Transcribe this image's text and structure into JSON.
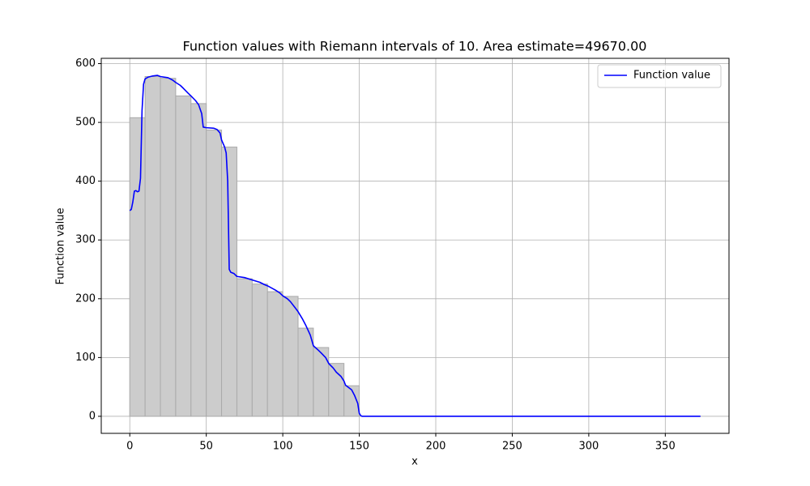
{
  "chart_data": {
    "type": "line",
    "title": "Function values with Riemann intervals of 10. Area estimate=49670.00",
    "x_label": "x",
    "y_label": "Function value",
    "xlim": [
      -18.65,
      391.65
    ],
    "ylim": [
      -29,
      609
    ],
    "xticks": [
      0,
      50,
      100,
      150,
      200,
      250,
      300,
      350
    ],
    "yticks": [
      0,
      100,
      200,
      300,
      400,
      500,
      600
    ],
    "grid": true,
    "legend": "upper right",
    "bars": {
      "color": "#cccccc",
      "edge_color": "#aaaaaa",
      "bins": [
        0,
        10,
        20,
        30,
        40,
        50,
        60,
        70,
        80,
        90,
        100,
        110,
        120,
        130,
        140,
        150
      ],
      "values": [
        508,
        578,
        575,
        545,
        532,
        487,
        458,
        234,
        225,
        212,
        204,
        150,
        117,
        90,
        52
      ]
    },
    "series": [
      {
        "name": "Function value",
        "color": "#0000ff",
        "x": [
          0,
          1,
          2,
          3,
          4,
          5,
          6,
          7,
          8,
          9,
          10,
          12,
          15,
          18,
          20,
          25,
          28,
          30,
          33,
          35,
          38,
          40,
          43,
          45,
          47,
          48,
          50,
          55,
          57,
          59,
          60,
          62,
          63,
          64,
          65,
          66,
          68,
          70,
          75,
          80,
          85,
          88,
          90,
          95,
          98,
          100,
          103,
          105,
          108,
          110,
          113,
          115,
          118,
          120,
          123,
          125,
          128,
          130,
          133,
          135,
          138,
          140,
          141,
          143,
          145,
          147,
          149,
          150,
          151,
          152,
          200,
          300,
          373
        ],
        "values": [
          350,
          352,
          365,
          383,
          384,
          382,
          383,
          405,
          520,
          565,
          574,
          577,
          579,
          580,
          578,
          576,
          572,
          568,
          563,
          558,
          550,
          545,
          537,
          530,
          515,
          492,
          491,
          490,
          488,
          482,
          470,
          458,
          448,
          400,
          250,
          245,
          243,
          238,
          236,
          232,
          228,
          224,
          222,
          215,
          210,
          205,
          200,
          195,
          185,
          178,
          165,
          155,
          138,
          120,
          113,
          108,
          100,
          90,
          82,
          75,
          68,
          60,
          53,
          49,
          45,
          35,
          22,
          5,
          1,
          0,
          0,
          0,
          0
        ]
      }
    ]
  }
}
